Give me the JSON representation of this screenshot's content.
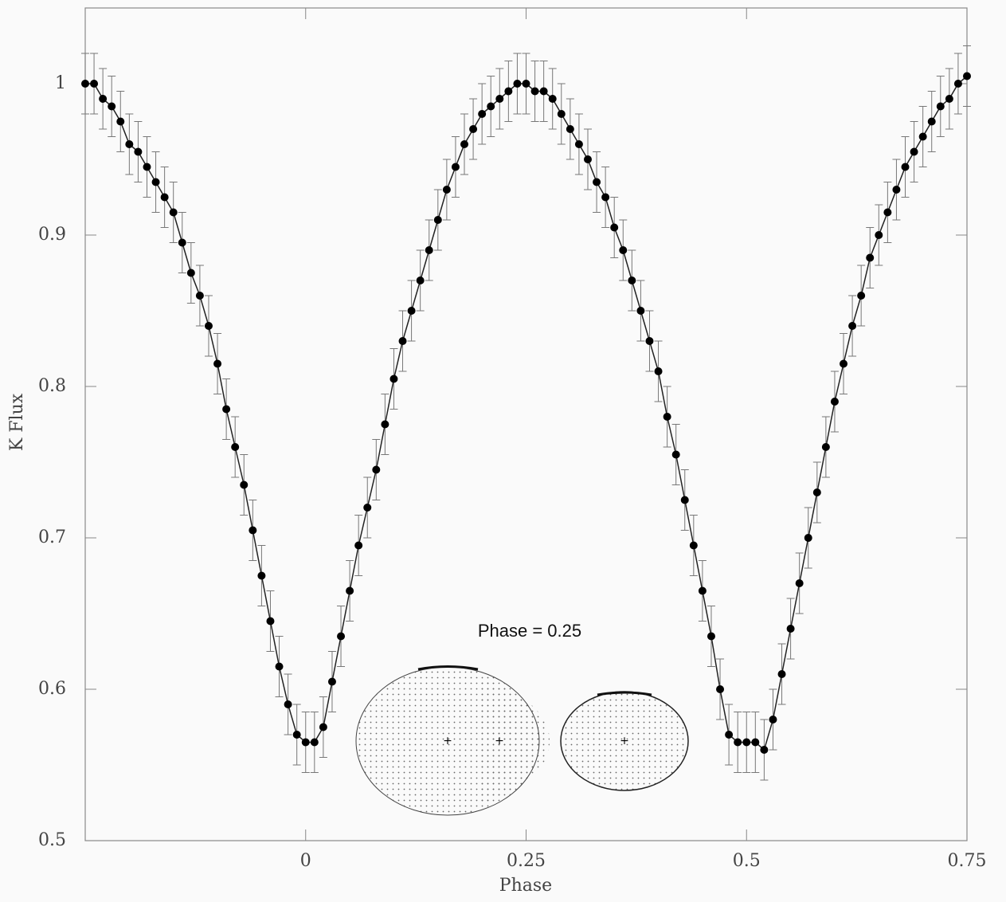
{
  "chart_data": {
    "type": "errorbar",
    "xlabel": "Phase",
    "ylabel": "K Flux",
    "annotation": "Phase = 0.25",
    "xlim": [
      -0.25,
      0.75
    ],
    "ylim": [
      0.5,
      1.05
    ],
    "xticks": [
      0,
      0.25,
      0.5,
      0.75
    ],
    "yticks": [
      0.5,
      0.6,
      0.7,
      0.8,
      0.9,
      1
    ],
    "color": "#000000",
    "error": 0.02,
    "x": [
      -0.25,
      -0.24,
      -0.23,
      -0.22,
      -0.21,
      -0.2,
      -0.19,
      -0.18,
      -0.17,
      -0.16,
      -0.15,
      -0.14,
      -0.13,
      -0.12,
      -0.11,
      -0.1,
      -0.09,
      -0.08,
      -0.07,
      -0.06,
      -0.05,
      -0.04,
      -0.03,
      -0.02,
      -0.01,
      0,
      0.01,
      0.02,
      0.03,
      0.04,
      0.05,
      0.06,
      0.07,
      0.08,
      0.09,
      0.1,
      0.11,
      0.12,
      0.13,
      0.14,
      0.15,
      0.16,
      0.17,
      0.18,
      0.19,
      0.2,
      0.21,
      0.22,
      0.23,
      0.24,
      0.25,
      0.26,
      0.27,
      0.28,
      0.29,
      0.3,
      0.31,
      0.32,
      0.33,
      0.34,
      0.35,
      0.36,
      0.37,
      0.38,
      0.39,
      0.4,
      0.41,
      0.42,
      0.43,
      0.44,
      0.45,
      0.46,
      0.47,
      0.48,
      0.49,
      0.5,
      0.51,
      0.52,
      0.53,
      0.54,
      0.55,
      0.56,
      0.57,
      0.58,
      0.59,
      0.6,
      0.61,
      0.62,
      0.63,
      0.64,
      0.65,
      0.66,
      0.67,
      0.68,
      0.69,
      0.7,
      0.71,
      0.72,
      0.73,
      0.74,
      0.75
    ],
    "values": [
      1.0,
      1.0,
      0.99,
      0.985,
      0.975,
      0.96,
      0.955,
      0.945,
      0.935,
      0.925,
      0.915,
      0.895,
      0.875,
      0.86,
      0.84,
      0.815,
      0.785,
      0.76,
      0.735,
      0.705,
      0.675,
      0.645,
      0.615,
      0.59,
      0.57,
      0.565,
      0.565,
      0.575,
      0.605,
      0.635,
      0.665,
      0.695,
      0.72,
      0.745,
      0.775,
      0.805,
      0.83,
      0.85,
      0.87,
      0.89,
      0.91,
      0.93,
      0.945,
      0.96,
      0.97,
      0.98,
      0.985,
      0.99,
      0.995,
      1.0,
      1.0,
      0.995,
      0.995,
      0.99,
      0.98,
      0.97,
      0.96,
      0.95,
      0.935,
      0.925,
      0.905,
      0.89,
      0.87,
      0.85,
      0.83,
      0.81,
      0.78,
      0.755,
      0.725,
      0.695,
      0.665,
      0.635,
      0.6,
      0.57,
      0.565,
      0.565,
      0.565,
      0.56,
      0.58,
      0.61,
      0.64,
      0.67,
      0.7,
      0.73,
      0.76,
      0.79,
      0.815,
      0.84,
      0.86,
      0.885,
      0.9,
      0.915,
      0.93,
      0.945,
      0.955,
      0.965,
      0.975,
      0.985,
      0.99,
      1.0,
      1.005
    ]
  }
}
